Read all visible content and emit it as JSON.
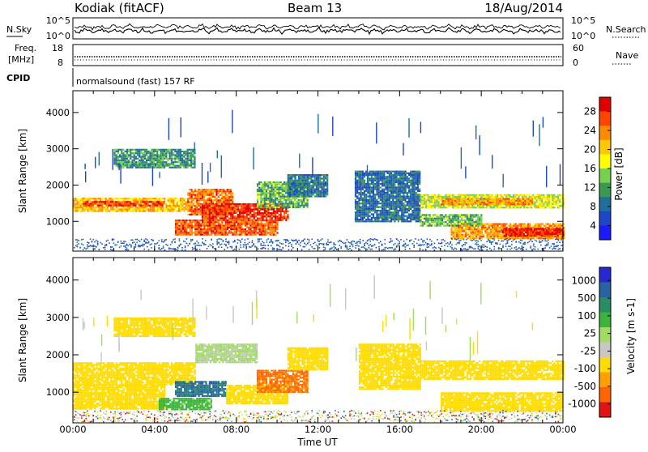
{
  "header": {
    "station": "Kodiak (fitACF)",
    "beam": "Beam 13",
    "date": "18/Aug/2014"
  },
  "nsky_panel": {
    "left_label": "N.Sky",
    "right_label": "N.Search",
    "left_ticks": [
      "10^5",
      "10^0"
    ],
    "right_ticks": [
      "10^5",
      "10^0"
    ]
  },
  "freq_panel": {
    "left_label_1": "Freq.",
    "left_label_2": "[MHz]",
    "right_label": "Nave",
    "left_ticks": [
      "18",
      "8"
    ],
    "right_ticks": [
      "60",
      "0"
    ]
  },
  "cpid": {
    "label": "CPID",
    "value": "normalsound (fast) 157 RF"
  },
  "power_colorbar": {
    "label": "Power [dB]",
    "ticks": [
      "28",
      "24",
      "20",
      "16",
      "12",
      "8",
      "4"
    ],
    "colors": [
      "#e00000",
      "#ff4400",
      "#ff8c00",
      "#ffc800",
      "#ffff00",
      "#78d050",
      "#3c9850",
      "#1e6e9e",
      "#1e46c8",
      "#1a1aff"
    ]
  },
  "velocity_colorbar": {
    "label": "Velocity [m s-1]",
    "ticks": [
      "1000",
      "500",
      "100",
      "25",
      "-25",
      "-100",
      "-500",
      "-1000"
    ],
    "colors": [
      "#2828d2",
      "#2864a0",
      "#288c64",
      "#3cb43c",
      "#a0dc64",
      "#c8c8c0",
      "#ffdc00",
      "#ffa000",
      "#ff6400",
      "#e01414"
    ]
  },
  "chart_data": [
    {
      "type": "heatmap",
      "title": "Power",
      "ylabel": "Slant Range [km]",
      "xlabel": "Time UT",
      "x_ticks": [
        "00:00",
        "04:00",
        "08:00",
        "12:00",
        "16:00",
        "20:00",
        "00:00"
      ],
      "y_ticks": [
        "1000",
        "2000",
        "3000",
        "4000"
      ],
      "xlim_hours": [
        0,
        24
      ],
      "ylim_km": [
        180,
        4600
      ],
      "colorbar_range_db": [
        0,
        30
      ],
      "regions": [
        {
          "t0": 0.0,
          "t1": 5.6,
          "r0": 1300,
          "r1": 1650,
          "value": 20
        },
        {
          "t0": 0.5,
          "t1": 4.5,
          "r0": 1420,
          "r1": 1560,
          "value": 26
        },
        {
          "t0": 5.6,
          "t1": 7.8,
          "r0": 1200,
          "r1": 1900,
          "value": 24
        },
        {
          "t0": 6.3,
          "t1": 10.5,
          "r0": 1050,
          "r1": 1500,
          "value": 27
        },
        {
          "t0": 5.0,
          "t1": 10.0,
          "r0": 650,
          "r1": 1050,
          "value": 25
        },
        {
          "t0": 9.0,
          "t1": 11.5,
          "r0": 1400,
          "r1": 2100,
          "value": 12
        },
        {
          "t0": 10.5,
          "t1": 12.5,
          "r0": 1700,
          "r1": 2300,
          "value": 8
        },
        {
          "t0": 2.0,
          "t1": 6.0,
          "r0": 2500,
          "r1": 3000,
          "value": 10
        },
        {
          "t0": 13.8,
          "t1": 17.0,
          "r0": 1000,
          "r1": 2400,
          "value": 7
        },
        {
          "t0": 17.0,
          "t1": 24.0,
          "r0": 1400,
          "r1": 1750,
          "value": 16
        },
        {
          "t0": 18.0,
          "t1": 22.5,
          "r0": 1480,
          "r1": 1640,
          "value": 22
        },
        {
          "t0": 18.5,
          "t1": 24.0,
          "r0": 550,
          "r1": 950,
          "value": 22
        },
        {
          "t0": 21.0,
          "t1": 24.0,
          "r0": 580,
          "r1": 820,
          "value": 28
        },
        {
          "t0": 17.0,
          "t1": 20.0,
          "r0": 900,
          "r1": 1200,
          "value": 12
        }
      ]
    },
    {
      "type": "heatmap",
      "title": "Velocity",
      "ylabel": "Slant Range [km]",
      "xlabel": "Time UT",
      "x_ticks": [
        "00:00",
        "04:00",
        "08:00",
        "12:00",
        "16:00",
        "20:00",
        "00:00"
      ],
      "y_ticks": [
        "1000",
        "2000",
        "3000",
        "4000"
      ],
      "xlim_hours": [
        0,
        24
      ],
      "ylim_km": [
        180,
        4600
      ],
      "colorbar_range_ms": [
        -1000,
        1000
      ],
      "regions": [
        {
          "t0": 0.0,
          "t1": 6.0,
          "r0": 1200,
          "r1": 1800,
          "value": 0
        },
        {
          "t0": 0.0,
          "t1": 4.5,
          "r0": 550,
          "r1": 1200,
          "value": 0
        },
        {
          "t0": 4.2,
          "t1": 6.8,
          "r0": 550,
          "r1": 850,
          "value": 150
        },
        {
          "t0": 5.0,
          "t1": 7.5,
          "r0": 900,
          "r1": 1300,
          "value": 600
        },
        {
          "t0": 7.5,
          "t1": 10.5,
          "r0": 700,
          "r1": 1200,
          "value": 0
        },
        {
          "t0": 9.0,
          "t1": 11.5,
          "r0": 1000,
          "r1": 1600,
          "value": -120
        },
        {
          "t0": 10.5,
          "t1": 12.5,
          "r0": 1600,
          "r1": 2200,
          "value": 0
        },
        {
          "t0": 2.0,
          "t1": 6.0,
          "r0": 2500,
          "r1": 3000,
          "value": 0
        },
        {
          "t0": 14.0,
          "t1": 17.0,
          "r0": 1100,
          "r1": 2300,
          "value": 0
        },
        {
          "t0": 17.0,
          "t1": 24.0,
          "r0": 1350,
          "r1": 1850,
          "value": 0
        },
        {
          "t0": 18.0,
          "t1": 24.0,
          "r0": 500,
          "r1": 1000,
          "value": 0
        },
        {
          "t0": 6.0,
          "t1": 9.0,
          "r0": 1800,
          "r1": 2300,
          "value": 60
        }
      ]
    }
  ]
}
